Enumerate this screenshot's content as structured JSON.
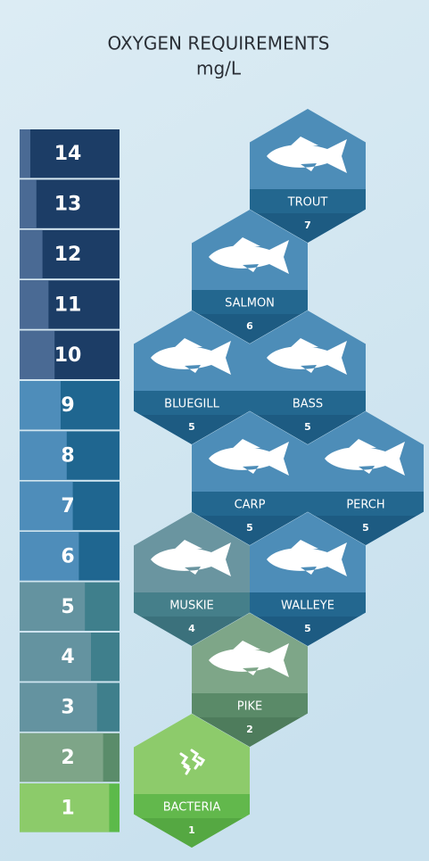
{
  "header": {
    "title": "OXYGEN REQUIREMENTS",
    "subtitle": "mg/L"
  },
  "scale": [
    14,
    13,
    12,
    11,
    10,
    9,
    8,
    7,
    6,
    5,
    4,
    3,
    2,
    1
  ],
  "organisms": [
    {
      "name": "TROUT",
      "value": 7
    },
    {
      "name": "SALMON",
      "value": 6
    },
    {
      "name": "BLUEGILL",
      "value": 5
    },
    {
      "name": "BASS",
      "value": 5
    },
    {
      "name": "CARP",
      "value": 5
    },
    {
      "name": "PERCH",
      "value": 5
    },
    {
      "name": "MUSKIE",
      "value": 4
    },
    {
      "name": "WALLEYE",
      "value": 5
    },
    {
      "name": "PIKE",
      "value": 2
    },
    {
      "name": "BACTERIA",
      "value": 1
    }
  ]
}
